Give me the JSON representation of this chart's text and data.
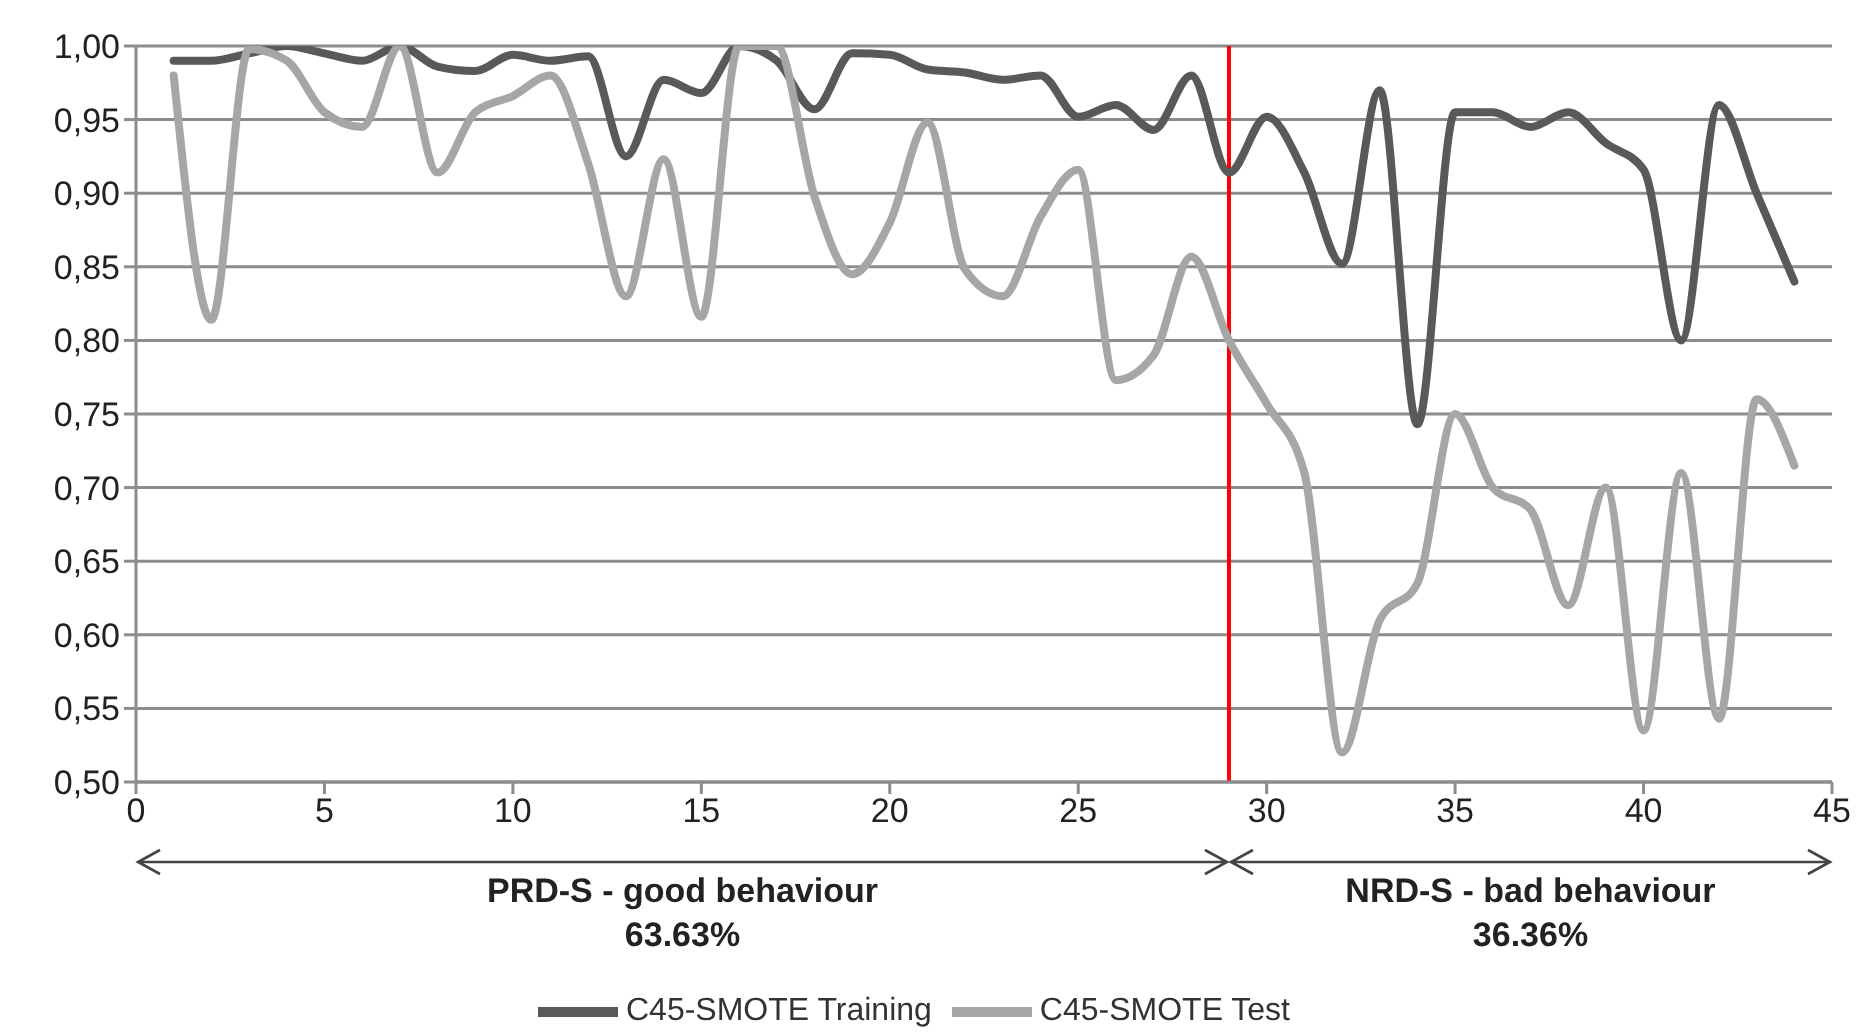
{
  "chart_data": {
    "type": "line",
    "x": [
      1,
      2,
      3,
      4,
      5,
      6,
      7,
      8,
      9,
      10,
      11,
      12,
      13,
      14,
      15,
      16,
      17,
      18,
      19,
      20,
      21,
      22,
      23,
      24,
      25,
      26,
      27,
      28,
      29,
      30,
      31,
      32,
      33,
      34,
      35,
      36,
      37,
      38,
      39,
      40,
      41,
      42,
      43,
      44
    ],
    "series": [
      {
        "name": "C45-SMOTE Training",
        "color": "#595959",
        "values": [
          0.99,
          0.99,
          0.995,
          1.0,
          0.995,
          0.99,
          1.0,
          0.986,
          0.983,
          0.994,
          0.99,
          0.993,
          0.925,
          0.977,
          0.968,
          1.0,
          0.99,
          0.957,
          0.995,
          0.994,
          0.984,
          0.982,
          0.977,
          0.98,
          0.952,
          0.96,
          0.943,
          0.98,
          0.914,
          0.952,
          0.914,
          0.852,
          0.97,
          0.743,
          0.955,
          0.955,
          0.945,
          0.955,
          0.934,
          0.916,
          0.8,
          0.96,
          0.9,
          0.84
        ]
      },
      {
        "name": "C45-SMOTE Test",
        "color": "#a6a6a6",
        "values": [
          0.98,
          0.814,
          0.998,
          0.99,
          0.955,
          0.945,
          1.0,
          0.914,
          0.955,
          0.966,
          0.98,
          0.92,
          0.83,
          0.923,
          0.816,
          1.0,
          1.0,
          0.898,
          0.845,
          0.88,
          0.948,
          0.848,
          0.83,
          0.884,
          0.916,
          0.773,
          0.79,
          0.857,
          0.8,
          0.757,
          0.71,
          0.52,
          0.61,
          0.635,
          0.75,
          0.7,
          0.685,
          0.62,
          0.7,
          0.535,
          0.71,
          0.543,
          0.76,
          0.715
        ]
      }
    ],
    "xlim": [
      0,
      45
    ],
    "xticks": [
      0,
      5,
      10,
      15,
      20,
      25,
      30,
      35,
      40,
      45
    ],
    "ylim": [
      0.5,
      1.0
    ],
    "yticks": [
      {
        "value": 0.5,
        "label": "0,50"
      },
      {
        "value": 0.55,
        "label": "0,55"
      },
      {
        "value": 0.6,
        "label": "0,60"
      },
      {
        "value": 0.65,
        "label": "0,65"
      },
      {
        "value": 0.7,
        "label": "0,70"
      },
      {
        "value": 0.75,
        "label": "0,75"
      },
      {
        "value": 0.8,
        "label": "0,80"
      },
      {
        "value": 0.85,
        "label": "0,85"
      },
      {
        "value": 0.9,
        "label": "0,90"
      },
      {
        "value": 0.95,
        "label": "0,95"
      },
      {
        "value": 1.0,
        "label": "1,00"
      }
    ],
    "ref_lines": [
      {
        "axis": "x",
        "value": 29,
        "color": "#ff0000"
      }
    ],
    "annotations": [
      "PRD-S - good behaviour",
      "63.63%",
      "NRD-S - bad behaviour",
      "36.36%"
    ],
    "grid": "y",
    "legend": "bottom",
    "marker": "none",
    "line_style": "solid"
  }
}
